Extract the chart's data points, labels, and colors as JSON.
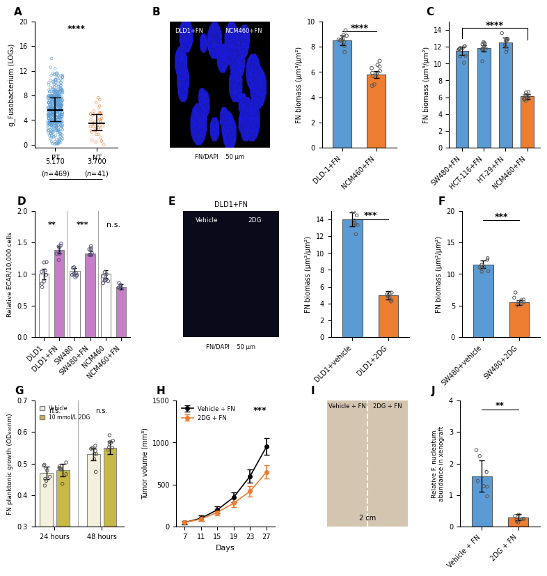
{
  "panel_A": {
    "PT_color": "#5B9BD5",
    "NT_color": "#ED7D31",
    "ylabel": "g_Fusobacterium (LOG₂)",
    "ylim": [
      0,
      20
    ],
    "yticks": [
      0,
      4,
      8,
      12,
      16,
      20
    ],
    "sig": "****",
    "PT_median": 5.17,
    "NT_median": 3.7,
    "PT_n": 469,
    "NT_n": 41
  },
  "panel_B_bar": {
    "categories": [
      "DLD-1+FN",
      "NCM460+FN"
    ],
    "values": [
      8.5,
      5.8
    ],
    "errors": [
      0.4,
      0.3
    ],
    "colors": [
      "#5B9BD5",
      "#ED7D31"
    ],
    "ylabel": "FN biomass (μm³/μm²)",
    "ylim": [
      0,
      10
    ],
    "sig": "****"
  },
  "panel_C": {
    "categories": [
      "SW480+FN",
      "HCT-116+FN",
      "HT-29+FN",
      "NCM460+FN"
    ],
    "values": [
      11.5,
      11.8,
      12.5,
      6.1
    ],
    "errors": [
      0.5,
      0.4,
      0.6,
      0.3
    ],
    "colors": [
      "#5B9BD5",
      "#5B9BD5",
      "#5B9BD5",
      "#ED7D31"
    ],
    "ylabel": "FN biomass (μm³/μm²)",
    "ylim": [
      0,
      15
    ],
    "sig": "****"
  },
  "panel_D": {
    "categories": [
      "DLD1",
      "DLD1+FN",
      "SW480",
      "SW480+FN",
      "NCM460",
      "NCM460+FN"
    ],
    "values": [
      1.0,
      1.38,
      1.05,
      1.33,
      1.0,
      0.8
    ],
    "errors": [
      0.08,
      0.05,
      0.04,
      0.04,
      0.06,
      0.04
    ],
    "colors": [
      "#FFFFFF",
      "#C77DC7",
      "#FFFFFF",
      "#C77DC7",
      "#FFFFFF",
      "#C77DC7"
    ],
    "ylabel": "Relative ECAR/10,000 cells",
    "ylim": [
      0,
      2.0
    ],
    "yticks": [
      0,
      0.5,
      1.0,
      1.5,
      2.0
    ],
    "sigs": [
      "**",
      "***",
      "n.s."
    ]
  },
  "panel_E_bar": {
    "categories": [
      "DLD1+vehicle",
      "DLD1+2DG"
    ],
    "values": [
      14.0,
      5.0
    ],
    "errors": [
      0.8,
      0.5
    ],
    "colors": [
      "#5B9BD5",
      "#ED7D31"
    ],
    "ylabel": "FN biomass (μm³/μm²)",
    "ylim": [
      0,
      15
    ],
    "sig": "***"
  },
  "panel_F": {
    "categories": [
      "SW480+vehicle",
      "SW480+2DG"
    ],
    "values": [
      11.5,
      5.5
    ],
    "errors": [
      0.6,
      0.4
    ],
    "colors": [
      "#5B9BD5",
      "#ED7D31"
    ],
    "ylabel": "FN biomass (μm³/μm²)",
    "ylim": [
      0,
      20
    ],
    "yticks": [
      0,
      5,
      10,
      15,
      20
    ],
    "sig": "***"
  },
  "panel_G": {
    "values_24": [
      0.47,
      0.48
    ],
    "values_48": [
      0.53,
      0.55
    ],
    "errors_24": [
      0.02,
      0.02
    ],
    "errors_48": [
      0.02,
      0.02
    ],
    "vehicle_color": "#F5F0DC",
    "dg_color": "#C8B847",
    "ylabel": "FN planktonic growth (OD₆₀₀nm)",
    "ylim": [
      0.3,
      0.7
    ],
    "yticks": [
      0.3,
      0.4,
      0.5,
      0.6,
      0.7
    ],
    "legend": [
      "Vehicle",
      "10 mmol/L 2DG"
    ]
  },
  "panel_H": {
    "days": [
      7,
      11,
      15,
      19,
      23,
      27
    ],
    "vehicle_values": [
      50,
      100,
      200,
      350,
      600,
      950
    ],
    "vehicle_errors": [
      20,
      30,
      40,
      60,
      80,
      100
    ],
    "dg_values": [
      50,
      90,
      170,
      280,
      420,
      650
    ],
    "dg_errors": [
      15,
      25,
      35,
      50,
      60,
      80
    ],
    "vehicle_color": "#000000",
    "dg_color": "#ED7D31",
    "ylabel": "Tumor volume (mm³)",
    "ylim": [
      0,
      1500
    ],
    "yticks": [
      0,
      500,
      1000,
      1500
    ],
    "xlabel": "Days",
    "sig": "***",
    "legend": [
      "Vehicle + FN",
      "2DG + FN"
    ]
  },
  "panel_J": {
    "categories": [
      "Vehicle + FN",
      "2DG + FN"
    ],
    "values": [
      1.6,
      0.3
    ],
    "errors": [
      0.5,
      0.1
    ],
    "colors": [
      "#5B9BD5",
      "#ED7D31"
    ],
    "ylabel": "Relative F. nucleatum\nabundance in xenograft",
    "ylim": [
      0,
      4
    ],
    "yticks": [
      0,
      1,
      2,
      3,
      4
    ],
    "sig": "**"
  }
}
